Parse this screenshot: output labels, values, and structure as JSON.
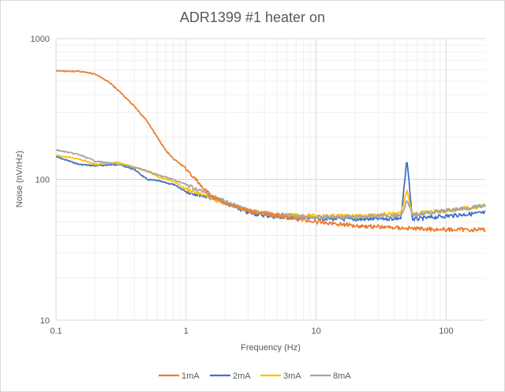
{
  "chart_data": {
    "type": "line",
    "title": "ADR1399 #1 heater on",
    "xlabel": "Frequency (Hz)",
    "ylabel": "Noise (nV/rHz)",
    "xscale": "log",
    "yscale": "log",
    "xlim": [
      0.1,
      200
    ],
    "ylim": [
      10,
      1000
    ],
    "xticks": [
      "0.1",
      "1",
      "10",
      "100"
    ],
    "yticks": [
      "10",
      "100",
      "1000"
    ],
    "grid": true,
    "legend_position": "bottom",
    "series": [
      {
        "name": "1mA",
        "color": "#ED7D31",
        "x": [
          0.1,
          0.15,
          0.2,
          0.25,
          0.3,
          0.4,
          0.5,
          0.6,
          0.7,
          0.8,
          1.0,
          1.3,
          1.6,
          2.0,
          3.0,
          5.0,
          10,
          20,
          50,
          100,
          200
        ],
        "y": [
          590,
          585,
          560,
          500,
          430,
          330,
          260,
          200,
          160,
          140,
          120,
          90,
          75,
          68,
          60,
          55,
          50,
          47,
          45,
          44,
          44
        ]
      },
      {
        "name": "2mA",
        "color": "#4472C4",
        "x": [
          0.1,
          0.15,
          0.2,
          0.3,
          0.4,
          0.5,
          0.6,
          0.8,
          1.0,
          1.5,
          2.0,
          3.0,
          5.0,
          10,
          20,
          45,
          50,
          55,
          100,
          200
        ],
        "y": [
          145,
          128,
          125,
          128,
          118,
          100,
          98,
          92,
          82,
          75,
          68,
          58,
          54,
          53,
          52,
          53,
          140,
          52,
          55,
          58
        ]
      },
      {
        "name": "3mA",
        "color": "#FFC000",
        "x": [
          0.1,
          0.15,
          0.2,
          0.3,
          0.4,
          0.5,
          0.6,
          0.8,
          1.0,
          1.5,
          2.0,
          3.0,
          5.0,
          10,
          20,
          45,
          50,
          55,
          100,
          200
        ],
        "y": [
          148,
          140,
          128,
          132,
          122,
          115,
          105,
          97,
          85,
          75,
          68,
          60,
          56,
          55,
          55,
          57,
          85,
          57,
          60,
          65
        ]
      },
      {
        "name": "8mA",
        "color": "#A5A5A5",
        "x": [
          0.1,
          0.15,
          0.2,
          0.3,
          0.4,
          0.5,
          0.6,
          0.8,
          1.0,
          1.5,
          2.0,
          3.0,
          5.0,
          10,
          20,
          45,
          50,
          55,
          100,
          200
        ],
        "y": [
          162,
          150,
          135,
          128,
          122,
          115,
          108,
          100,
          92,
          78,
          70,
          60,
          56,
          54,
          54,
          56,
          70,
          56,
          60,
          65
        ]
      }
    ]
  }
}
